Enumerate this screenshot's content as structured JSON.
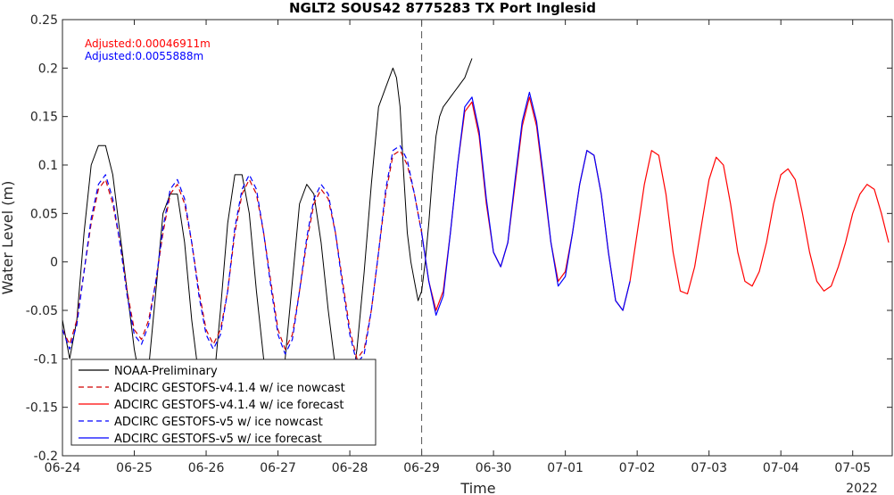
{
  "chart_data": {
    "type": "line",
    "title": "NGLT2 SOUS42 8775283 TX Port Inglesid",
    "xlabel": "Time",
    "ylabel": "Water Level (m)",
    "year_label": "2022",
    "xlim": [
      0,
      11.55
    ],
    "ylim": [
      -0.2,
      0.25
    ],
    "x_ticks": [
      0,
      1,
      2,
      3,
      4,
      5,
      6,
      7,
      8,
      9,
      10,
      11
    ],
    "x_tick_labels": [
      "06-24",
      "06-25",
      "06-26",
      "06-27",
      "06-28",
      "06-29",
      "06-30",
      "07-01",
      "07-02",
      "07-03",
      "07-04",
      "07-05"
    ],
    "y_ticks": [
      -0.2,
      -0.15,
      -0.1,
      -0.05,
      0,
      0.05,
      0.1,
      0.15,
      0.2,
      0.25
    ],
    "y_tick_labels": [
      "-0.2",
      "-0.15",
      "-0.1",
      "-0.05",
      "0",
      "0.05",
      "0.1",
      "0.15",
      "0.2",
      "0.25"
    ],
    "forecast_start_x": 5,
    "annotations": [
      {
        "text": "Adjusted:0.00046911m",
        "color": "#ff0000"
      },
      {
        "text": "Adjusted:0.0055888m",
        "color": "#0000ff"
      }
    ],
    "series": [
      {
        "name": "NOAA-Preliminary",
        "color": "#000000",
        "style": "solid",
        "x": [
          0,
          0.1,
          0.2,
          0.3,
          0.4,
          0.5,
          0.6,
          0.7,
          0.8,
          0.9,
          1.0,
          1.1,
          1.2,
          1.3,
          1.4,
          1.5,
          1.6,
          1.7,
          1.8,
          1.9,
          2.0,
          2.1,
          2.2,
          2.3,
          2.4,
          2.5,
          2.6,
          2.7,
          2.8,
          2.9,
          3.0,
          3.1,
          3.2,
          3.3,
          3.4,
          3.5,
          3.6,
          3.7,
          3.8,
          3.9,
          4.0,
          4.1,
          4.2,
          4.3,
          4.4,
          4.5,
          4.6,
          4.65,
          4.7,
          4.75,
          4.8,
          4.85,
          4.9,
          4.95,
          5.0,
          5.05,
          5.1,
          5.15,
          5.2,
          5.25,
          5.3,
          5.35,
          5.4,
          5.45,
          5.5,
          5.55,
          5.6,
          5.65,
          5.7
        ],
        "y": [
          -0.06,
          -0.1,
          -0.06,
          0.03,
          0.1,
          0.12,
          0.12,
          0.09,
          0.03,
          -0.03,
          -0.09,
          -0.13,
          -0.11,
          -0.03,
          0.05,
          0.07,
          0.07,
          0.02,
          -0.06,
          -0.12,
          -0.15,
          -0.13,
          -0.05,
          0.04,
          0.09,
          0.09,
          0.05,
          -0.03,
          -0.1,
          -0.14,
          -0.14,
          -0.1,
          -0.02,
          0.06,
          0.08,
          0.07,
          0.02,
          -0.05,
          -0.11,
          -0.14,
          -0.14,
          -0.09,
          -0.01,
          0.08,
          0.16,
          0.18,
          0.2,
          0.19,
          0.16,
          0.09,
          0.03,
          0.0,
          -0.02,
          -0.04,
          -0.03,
          0.0,
          0.04,
          0.09,
          0.13,
          0.15,
          0.16,
          0.165,
          0.17,
          0.175,
          0.18,
          0.185,
          0.19,
          0.2,
          0.21
        ]
      },
      {
        "name": "ADCIRC GESTOFS-v4.1.4 w/ ice nowcast",
        "color": "#d00000",
        "style": "dashed",
        "x": [
          0,
          0.1,
          0.2,
          0.3,
          0.4,
          0.5,
          0.6,
          0.7,
          0.8,
          0.9,
          1.0,
          1.1,
          1.2,
          1.3,
          1.4,
          1.5,
          1.6,
          1.7,
          1.8,
          1.9,
          2.0,
          2.1,
          2.2,
          2.3,
          2.4,
          2.5,
          2.6,
          2.7,
          2.8,
          2.9,
          3.0,
          3.1,
          3.2,
          3.3,
          3.4,
          3.5,
          3.6,
          3.7,
          3.8,
          3.9,
          4.0,
          4.1,
          4.2,
          4.3,
          4.4,
          4.5,
          4.6,
          4.7,
          4.8,
          4.9,
          5.0
        ],
        "y": [
          -0.07,
          -0.085,
          -0.06,
          -0.01,
          0.04,
          0.075,
          0.085,
          0.06,
          0.02,
          -0.03,
          -0.07,
          -0.08,
          -0.06,
          -0.02,
          0.03,
          0.07,
          0.08,
          0.06,
          0.02,
          -0.03,
          -0.07,
          -0.085,
          -0.07,
          -0.03,
          0.03,
          0.07,
          0.085,
          0.07,
          0.03,
          -0.02,
          -0.07,
          -0.09,
          -0.075,
          -0.03,
          0.02,
          0.06,
          0.075,
          0.065,
          0.03,
          -0.02,
          -0.07,
          -0.1,
          -0.09,
          -0.05,
          0.01,
          0.07,
          0.11,
          0.115,
          0.1,
          0.07,
          0.03
        ]
      },
      {
        "name": "ADCIRC GESTOFS-v4.1.4 w/ ice forecast",
        "color": "#ff0000",
        "style": "solid",
        "x": [
          5.0,
          5.1,
          5.2,
          5.3,
          5.4,
          5.5,
          5.6,
          5.7,
          5.8,
          5.9,
          6.0,
          6.1,
          6.2,
          6.3,
          6.4,
          6.5,
          6.6,
          6.7,
          6.8,
          6.9,
          7.0,
          7.1,
          7.2,
          7.3,
          7.4,
          7.5,
          7.6,
          7.7,
          7.8,
          7.9,
          8.0,
          8.1,
          8.2,
          8.3,
          8.4,
          8.5,
          8.6,
          8.7,
          8.8,
          8.9,
          9.0,
          9.1,
          9.2,
          9.3,
          9.4,
          9.5,
          9.6,
          9.7,
          9.8,
          9.9,
          10.0,
          10.1,
          10.2,
          10.3,
          10.4,
          10.5,
          10.6,
          10.7,
          10.8,
          10.9,
          11.0,
          11.1,
          11.2,
          11.3,
          11.4,
          11.5
        ],
        "y": [
          0.03,
          -0.02,
          -0.05,
          -0.03,
          0.03,
          0.1,
          0.155,
          0.165,
          0.13,
          0.06,
          0.01,
          -0.005,
          0.02,
          0.08,
          0.14,
          0.17,
          0.14,
          0.08,
          0.02,
          -0.02,
          -0.01,
          0.03,
          0.08,
          0.115,
          0.11,
          0.07,
          0.01,
          -0.04,
          -0.05,
          -0.02,
          0.03,
          0.08,
          0.115,
          0.11,
          0.07,
          0.01,
          -0.03,
          -0.033,
          -0.005,
          0.04,
          0.085,
          0.108,
          0.1,
          0.06,
          0.01,
          -0.02,
          -0.025,
          -0.01,
          0.02,
          0.06,
          0.09,
          0.096,
          0.085,
          0.05,
          0.01,
          -0.02,
          -0.03,
          -0.025,
          -0.005,
          0.02,
          0.05,
          0.07,
          0.08,
          0.075,
          0.05,
          0.02
        ]
      },
      {
        "name": "ADCIRC GESTOFS-v5 w/ ice nowcast",
        "color": "#0000ff",
        "style": "dashed",
        "x": [
          0,
          0.1,
          0.2,
          0.3,
          0.4,
          0.5,
          0.6,
          0.7,
          0.8,
          0.9,
          1.0,
          1.1,
          1.2,
          1.3,
          1.4,
          1.5,
          1.6,
          1.7,
          1.8,
          1.9,
          2.0,
          2.1,
          2.2,
          2.3,
          2.4,
          2.5,
          2.6,
          2.7,
          2.8,
          2.9,
          3.0,
          3.1,
          3.2,
          3.3,
          3.4,
          3.5,
          3.6,
          3.7,
          3.8,
          3.9,
          4.0,
          4.1,
          4.2,
          4.3,
          4.4,
          4.5,
          4.6,
          4.7,
          4.8,
          4.9,
          5.0
        ],
        "y": [
          -0.07,
          -0.09,
          -0.065,
          -0.01,
          0.045,
          0.08,
          0.09,
          0.065,
          0.02,
          -0.035,
          -0.075,
          -0.085,
          -0.065,
          -0.02,
          0.035,
          0.075,
          0.085,
          0.065,
          0.02,
          -0.035,
          -0.075,
          -0.09,
          -0.075,
          -0.03,
          0.035,
          0.075,
          0.09,
          0.075,
          0.03,
          -0.025,
          -0.075,
          -0.095,
          -0.08,
          -0.03,
          0.025,
          0.065,
          0.08,
          0.07,
          0.03,
          -0.025,
          -0.075,
          -0.105,
          -0.095,
          -0.05,
          0.01,
          0.075,
          0.115,
          0.12,
          0.105,
          0.07,
          0.03
        ]
      },
      {
        "name": "ADCIRC GESTOFS-v5 w/ ice forecast",
        "color": "#0000ff",
        "style": "solid",
        "x": [
          5.0,
          5.1,
          5.2,
          5.3,
          5.4,
          5.5,
          5.6,
          5.7,
          5.8,
          5.9,
          6.0,
          6.1,
          6.2,
          6.3,
          6.4,
          6.5,
          6.6,
          6.7,
          6.8,
          6.9,
          7.0,
          7.1,
          7.2,
          7.3,
          7.4,
          7.5,
          7.6,
          7.7,
          7.8,
          7.9
        ],
        "y": [
          0.03,
          -0.02,
          -0.055,
          -0.035,
          0.03,
          0.1,
          0.16,
          0.17,
          0.135,
          0.065,
          0.01,
          -0.005,
          0.02,
          0.085,
          0.145,
          0.175,
          0.145,
          0.085,
          0.02,
          -0.025,
          -0.015,
          0.03,
          0.08,
          0.115,
          0.11,
          0.07,
          0.01,
          -0.04,
          -0.05,
          -0.02
        ]
      }
    ]
  }
}
